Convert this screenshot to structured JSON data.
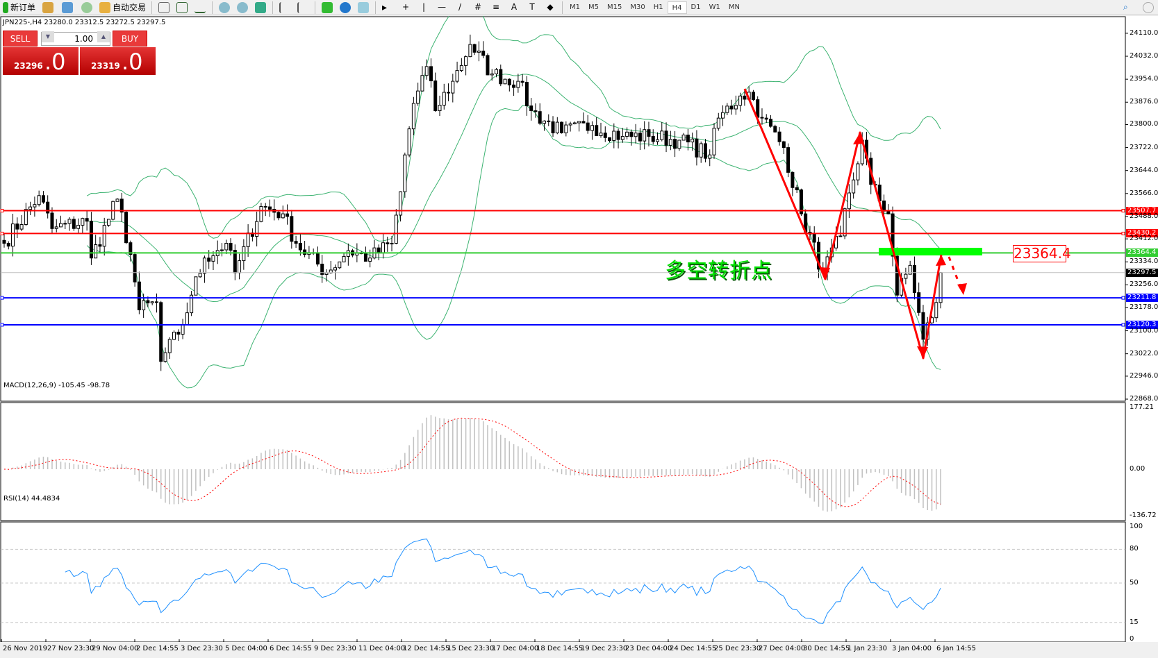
{
  "toolbar": {
    "new_order": "新订单",
    "auto_trading": "自动交易",
    "timeframes": [
      "M1",
      "M5",
      "M15",
      "M30",
      "H1",
      "H4",
      "D1",
      "W1",
      "MN"
    ],
    "active_timeframe": "H4"
  },
  "chart": {
    "header": "JPN225-,H4  23280.0 23312.5 23272.5 23297.5",
    "trade": {
      "sell": "SELL",
      "buy": "BUY",
      "lot": "1.00",
      "bid_main": "23296",
      "bid_frac": ".0",
      "ask_main": "23319",
      "ask_frac": ".0"
    },
    "price_ticks": [
      "24110.0",
      "24032.0",
      "23954.0",
      "23876.0",
      "23800.0",
      "23722.0",
      "23644.0",
      "23566.0",
      "23488.0",
      "23412.0",
      "23334.0",
      "23256.0",
      "23178.0",
      "23100.0",
      "23022.0",
      "22946.0",
      "22868.0"
    ],
    "levels": [
      {
        "value": "23507.7",
        "color": "#ff0000"
      },
      {
        "value": "23430.2",
        "color": "#ff0000"
      },
      {
        "value": "23364.4",
        "color": "#32cd32"
      },
      {
        "value": "23297.5",
        "color": "#000000",
        "current": true
      },
      {
        "value": "23211.8",
        "color": "#0000ff"
      },
      {
        "value": "23120.3",
        "color": "#0000ff"
      }
    ],
    "annotation": "多空转折点",
    "annotation_price": "23364.4",
    "arrow_color": "#ff0000",
    "zone_color": "#00ff00"
  },
  "macd": {
    "label": "MACD(12,26,9) -105.45 -98.78",
    "ticks": [
      "177.21",
      "0.00",
      "-136.72"
    ]
  },
  "rsi": {
    "label": "RSI(14) 44.4834",
    "ticks": [
      "100",
      "80",
      "50",
      "15",
      "0"
    ]
  },
  "time_labels": [
    "26 Nov 2019",
    "27 Nov 23:30",
    "29 Nov 04:00",
    "2 Dec 14:55",
    "3 Dec 23:30",
    "5 Dec 04:00",
    "6 Dec 14:55",
    "9 Dec 23:30",
    "11 Dec 04:00",
    "12 Dec 14:55",
    "15 Dec 23:30",
    "17 Dec 04:00",
    "18 Dec 14:55",
    "19 Dec 23:30",
    "23 Dec 04:00",
    "24 Dec 14:55",
    "25 Dec 23:30",
    "27 Dec 04:00",
    "30 Dec 14:55",
    "1 Jan 23:30",
    "3 Jan 04:00",
    "6 Jan 14:55"
  ],
  "chart_data": {
    "type": "candlestick",
    "symbol": "JPN225-",
    "timeframe": "H4",
    "ylim": [
      22861,
      24164
    ],
    "last_close": 23297.5,
    "close_path": [
      [
        0,
        23397
      ],
      [
        8,
        23559
      ],
      [
        11,
        23447
      ],
      [
        19,
        23472
      ],
      [
        20,
        23347
      ],
      [
        26,
        23547
      ],
      [
        29,
        23359
      ],
      [
        31,
        23171
      ],
      [
        35,
        23196
      ],
      [
        36,
        22996
      ],
      [
        41,
        23121
      ],
      [
        43,
        23221
      ],
      [
        46,
        23347
      ],
      [
        51,
        23397
      ],
      [
        53,
        23297
      ],
      [
        59,
        23522
      ],
      [
        64,
        23497
      ],
      [
        67,
        23397
      ],
      [
        74,
        23297
      ],
      [
        79,
        23372
      ],
      [
        84,
        23347
      ],
      [
        89,
        23397
      ],
      [
        91,
        23572
      ],
      [
        92,
        23697
      ],
      [
        94,
        23872
      ],
      [
        97,
        23997
      ],
      [
        99,
        23847
      ],
      [
        103,
        23947
      ],
      [
        107,
        24072
      ],
      [
        112,
        23972
      ],
      [
        118,
        23947
      ],
      [
        121,
        23847
      ],
      [
        128,
        23772
      ],
      [
        135,
        23797
      ],
      [
        142,
        23760
      ],
      [
        148,
        23760
      ],
      [
        155,
        23747
      ],
      [
        162,
        23697
      ],
      [
        164,
        23822
      ],
      [
        169,
        23897
      ],
      [
        171,
        23910
      ],
      [
        174,
        23822
      ],
      [
        179,
        23722
      ],
      [
        183,
        23497
      ],
      [
        188,
        23297
      ],
      [
        192,
        23422
      ],
      [
        197,
        23747
      ],
      [
        199,
        23597
      ],
      [
        203,
        23497
      ],
      [
        205,
        23221
      ],
      [
        208,
        23322
      ],
      [
        211,
        23071
      ],
      [
        214,
        23196
      ],
      [
        215,
        23297.5
      ]
    ],
    "indicators": [
      "Bollinger Bands",
      "MACD(12,26,9)",
      "RSI(14)"
    ]
  }
}
